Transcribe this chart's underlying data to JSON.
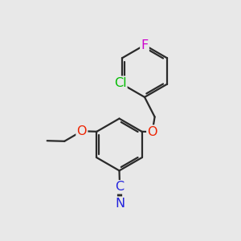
{
  "background_color": "#e8e8e8",
  "bond_color": "#2a2a2a",
  "bond_width": 1.6,
  "atom_labels": {
    "F": {
      "color": "#cc00cc",
      "fontsize": 11.5
    },
    "Cl": {
      "color": "#00bb00",
      "fontsize": 11.5
    },
    "O": {
      "color": "#ee2200",
      "fontsize": 11.5
    },
    "C": {
      "color": "#2222dd",
      "fontsize": 11.5
    },
    "N": {
      "color": "#2222dd",
      "fontsize": 11.5
    }
  },
  "figsize": [
    3.0,
    3.0
  ],
  "dpi": 100,
  "xlim": [
    0,
    10
  ],
  "ylim": [
    0,
    10
  ]
}
